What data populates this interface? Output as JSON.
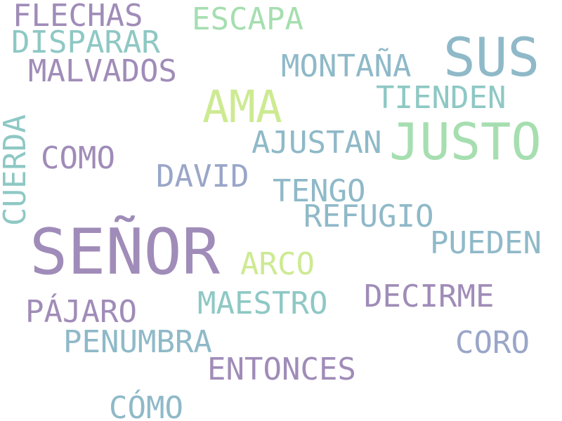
{
  "palette": {
    "purple": "#a08cb8",
    "teal": "#8ec8c4",
    "steel": "#8fb9c8",
    "green": "#a6deb0",
    "lime": "#cdea92",
    "lavender": "#9aa6c8",
    "background": "#ffffff"
  },
  "words": [
    {
      "text": "FLECHAS"
    },
    {
      "text": "ESCAPA"
    },
    {
      "text": "DISPARAR"
    },
    {
      "text": "SUS"
    },
    {
      "text": "MALVADOS"
    },
    {
      "text": "MONTAÑA"
    },
    {
      "text": "TIENDEN"
    },
    {
      "text": "AMA"
    },
    {
      "text": "JUSTO"
    },
    {
      "text": "CUERDA"
    },
    {
      "text": "AJUSTAN"
    },
    {
      "text": "COMO"
    },
    {
      "text": "DAVID"
    },
    {
      "text": "TENGO"
    },
    {
      "text": "REFUGIO"
    },
    {
      "text": "SEÑOR"
    },
    {
      "text": "PUEDEN"
    },
    {
      "text": "ARCO"
    },
    {
      "text": "DECIRME"
    },
    {
      "text": "PÁJARO"
    },
    {
      "text": "MAESTRO"
    },
    {
      "text": "PENUMBRA"
    },
    {
      "text": "CORO"
    },
    {
      "text": "ENTONCES"
    },
    {
      "text": "CÓMO"
    }
  ]
}
